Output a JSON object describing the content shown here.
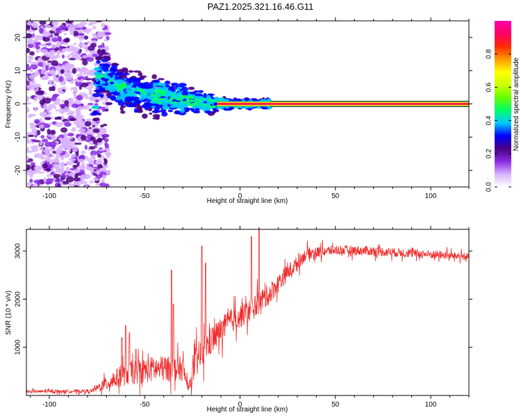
{
  "title": "PAZ1.2025.321.16.46.G11",
  "colors": {
    "snr_line": "#ee2b2b",
    "background": "#ffffff",
    "axis": "#000000",
    "colorbar_stops": [
      "#ffffff",
      "#d9b3ff",
      "#8a2be2",
      "#4b0082",
      "#0000ff",
      "#00c8ff",
      "#00ff66",
      "#66ff00",
      "#ccff00",
      "#ffff00",
      "#ff9900",
      "#ff2a00",
      "#ff0066",
      "#ff00aa"
    ]
  },
  "chart_data": [
    {
      "type": "heatmap",
      "name": "spectrogram",
      "title": "PAZ1.2025.321.16.46.G11",
      "xlabel": "Height of straight line (km)",
      "ylabel": "Frequency (Hz)",
      "xlim": [
        -112,
        120
      ],
      "ylim": [
        -25,
        25
      ],
      "xticks": [
        -100,
        -50,
        0,
        50,
        100
      ],
      "yticks": [
        -20,
        -10,
        0,
        10,
        20
      ],
      "colorbar": {
        "label": "Normalized spectral amplitude",
        "range": [
          0,
          1
        ],
        "ticks": [
          0.0,
          0.2,
          0.4,
          0.6,
          0.8
        ]
      },
      "features": {
        "carrier_frequency_hz": 0,
        "carrier_start_km": -12,
        "noise_region_km": [
          -112,
          -75
        ],
        "transition_region_km": [
          -75,
          15
        ],
        "spread_ridge": [
          {
            "x": -75,
            "f": 9
          },
          {
            "x": -60,
            "f": 4
          },
          {
            "x": -45,
            "f": 2.5
          },
          {
            "x": -35,
            "f": 1.5
          },
          {
            "x": -20,
            "f": 0.5
          },
          {
            "x": -10,
            "f": 0
          },
          {
            "x": 15,
            "f": 0
          }
        ]
      }
    },
    {
      "type": "line",
      "name": "snr",
      "xlabel": "Height of straight line (km)",
      "ylabel": "SNR (10 * v/v)",
      "xlim": [
        -112,
        120
      ],
      "ylim": [
        0,
        3450
      ],
      "xticks": [
        -100,
        -50,
        0,
        50,
        100
      ],
      "yticks": [
        1000,
        2000,
        3000
      ],
      "envelope": [
        {
          "x": -112,
          "mean": 80,
          "spread": 60
        },
        {
          "x": -78,
          "mean": 90,
          "spread": 70
        },
        {
          "x": -70,
          "mean": 250,
          "spread": 300
        },
        {
          "x": -60,
          "mean": 450,
          "spread": 500
        },
        {
          "x": -45,
          "mean": 550,
          "spread": 550
        },
        {
          "x": -30,
          "mean": 550,
          "spread": 500
        },
        {
          "x": -27,
          "mean": 150,
          "spread": 120
        },
        {
          "x": -23,
          "mean": 700,
          "spread": 700
        },
        {
          "x": -15,
          "mean": 1150,
          "spread": 600
        },
        {
          "x": -5,
          "mean": 1550,
          "spread": 500
        },
        {
          "x": 5,
          "mean": 1750,
          "spread": 500
        },
        {
          "x": 15,
          "mean": 2100,
          "spread": 450
        },
        {
          "x": 25,
          "mean": 2550,
          "spread": 350
        },
        {
          "x": 35,
          "mean": 2950,
          "spread": 250
        },
        {
          "x": 50,
          "mean": 3020,
          "spread": 200
        },
        {
          "x": 70,
          "mean": 3000,
          "spread": 200
        },
        {
          "x": 100,
          "mean": 2930,
          "spread": 180
        },
        {
          "x": 120,
          "mean": 2880,
          "spread": 150
        }
      ],
      "spikes": [
        {
          "x": -62,
          "y": 1200
        },
        {
          "x": -60,
          "y": 1450
        },
        {
          "x": -58,
          "y": 1300
        },
        {
          "x": -36,
          "y": 2600
        },
        {
          "x": -35,
          "y": 1900
        },
        {
          "x": -20,
          "y": 3100
        },
        {
          "x": -18,
          "y": 2750
        },
        {
          "x": 6,
          "y": 3300
        },
        {
          "x": 10,
          "y": 3450
        }
      ]
    }
  ]
}
